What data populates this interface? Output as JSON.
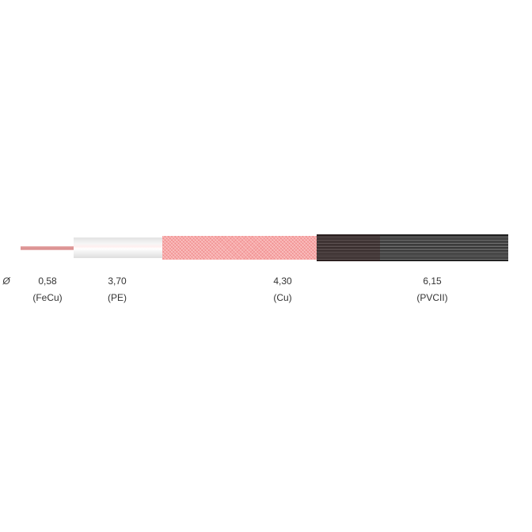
{
  "diameter_symbol": "Ø",
  "layers": [
    {
      "value": "0,58",
      "material": "(FeCu)",
      "color": "#d88a8a"
    },
    {
      "value": "3,70",
      "material": "(PE)",
      "color": "#f2f2f2"
    },
    {
      "value": "4,30",
      "material": "(Cu)",
      "color": "#f8a8a8"
    },
    {
      "value": "6,15",
      "material": "(PVCII)",
      "color": "#3a3a3a"
    }
  ]
}
